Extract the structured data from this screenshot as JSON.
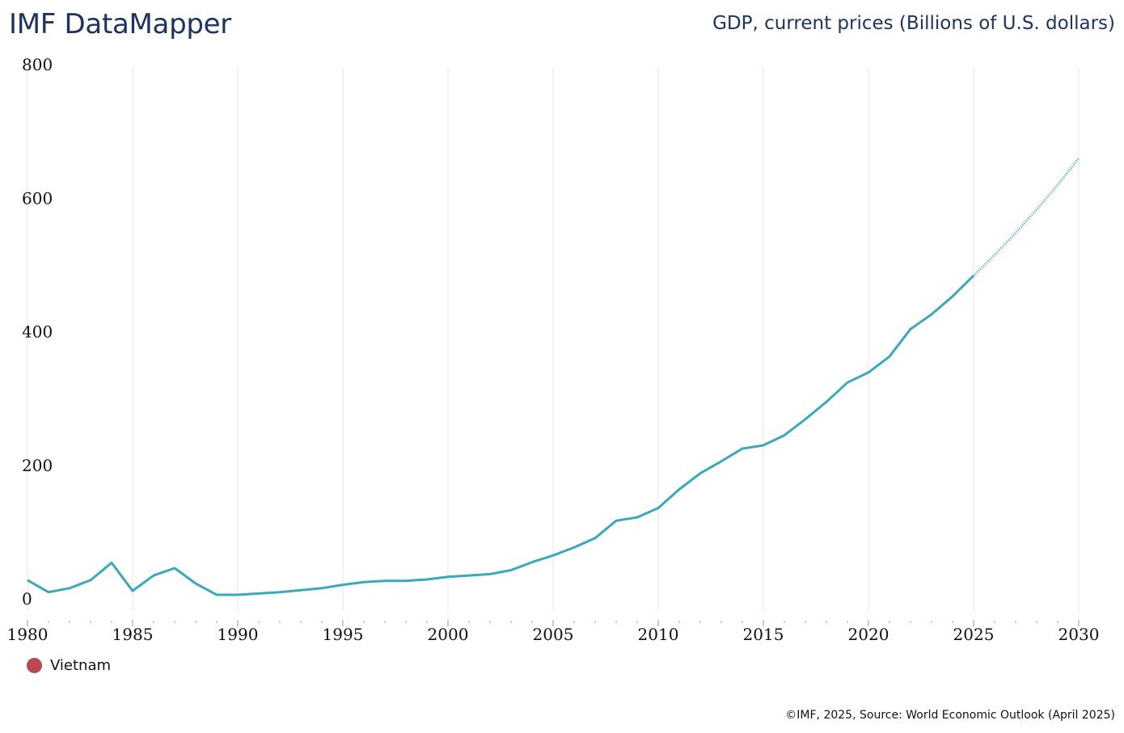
{
  "header": {
    "brand": "IMF DataMapper",
    "chart_title": "GDP, current prices (Billions of U.S. dollars)"
  },
  "legend": [
    {
      "label": "Vietnam",
      "color": "#b94a4f"
    }
  ],
  "footer": "©IMF, 2025, Source: World Economic Outlook (April 2025)",
  "colors": {
    "line": "#3aa9b9",
    "grid": "#e4e4e4"
  },
  "chart_data": {
    "type": "line",
    "title": "GDP, current prices (Billions of U.S. dollars)",
    "xlabel": "",
    "ylabel": "",
    "xlim": [
      1980,
      2030
    ],
    "ylim": [
      0,
      800
    ],
    "grid": true,
    "legend_position": "bottom-left",
    "x_ticks": [
      "1980",
      "1985",
      "1990",
      "1995",
      "2000",
      "2005",
      "2010",
      "2015",
      "2020",
      "2025",
      "2030"
    ],
    "y_ticks": [
      "0",
      "200",
      "400",
      "600",
      "800"
    ],
    "projection_start": 2025,
    "series": [
      {
        "name": "Vietnam",
        "x": [
          1980,
          1981,
          1982,
          1983,
          1984,
          1985,
          1986,
          1987,
          1988,
          1989,
          1990,
          1991,
          1992,
          1993,
          1994,
          1995,
          1996,
          1997,
          1998,
          1999,
          2000,
          2001,
          2002,
          2003,
          2004,
          2005,
          2006,
          2007,
          2008,
          2009,
          2010,
          2011,
          2012,
          2013,
          2014,
          2015,
          2016,
          2017,
          2018,
          2019,
          2020,
          2021,
          2022,
          2023,
          2024,
          2025,
          2026,
          2027,
          2028,
          2029,
          2030
        ],
        "values": [
          28,
          10,
          16,
          28,
          54,
          12,
          35,
          46,
          23,
          6,
          6,
          8,
          10,
          13,
          16,
          21,
          25,
          27,
          27,
          29,
          33,
          35,
          37,
          43,
          55,
          65,
          77,
          91,
          117,
          122,
          136,
          164,
          188,
          206,
          225,
          230,
          245,
          269,
          295,
          324,
          339,
          363,
          404,
          426,
          453,
          484,
          515,
          548,
          583,
          620,
          660
        ]
      }
    ]
  }
}
